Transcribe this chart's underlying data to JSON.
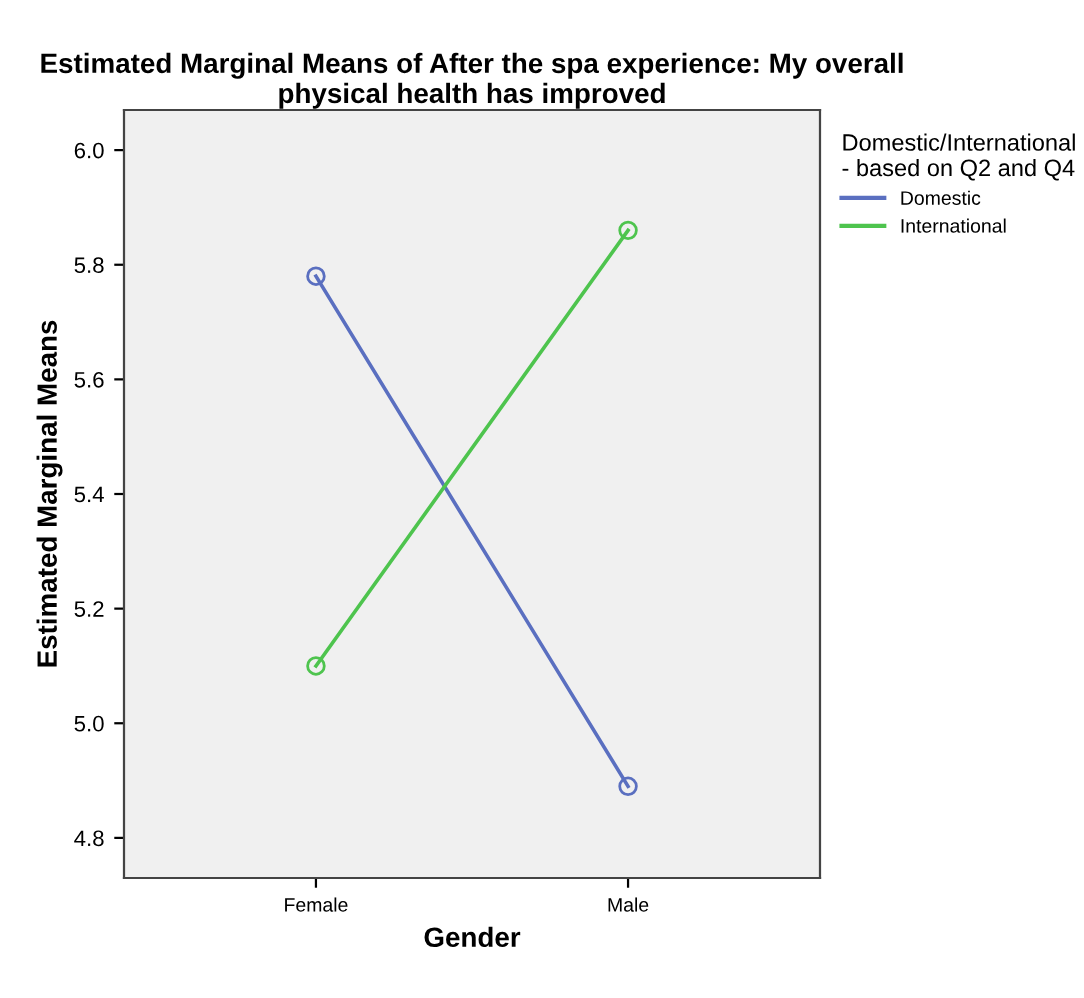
{
  "chart_data": {
    "type": "line",
    "title": "Estimated Marginal Means of After the spa experience: My overall physical health has improved",
    "xlabel": "Gender",
    "ylabel": "Estimated Marginal Means",
    "legend_title": "Domestic/International\n- based on Q2 and Q4",
    "categories": [
      "Female",
      "Male"
    ],
    "series": [
      {
        "name": "Domestic",
        "color": "#5a6fc0",
        "values": [
          5.78,
          4.89
        ]
      },
      {
        "name": "International",
        "color": "#4ec44e",
        "values": [
          5.1,
          5.86
        ]
      }
    ],
    "ylim": [
      4.73,
      6.07
    ],
    "yticks": [
      4.8,
      {
        "value": 5,
        "label": "5.0"
      },
      5.2,
      5.4,
      5.6,
      5.8,
      {
        "value": 6,
        "label": "6.0"
      }
    ],
    "marker": "circle",
    "grid": false,
    "legend": "top right"
  }
}
